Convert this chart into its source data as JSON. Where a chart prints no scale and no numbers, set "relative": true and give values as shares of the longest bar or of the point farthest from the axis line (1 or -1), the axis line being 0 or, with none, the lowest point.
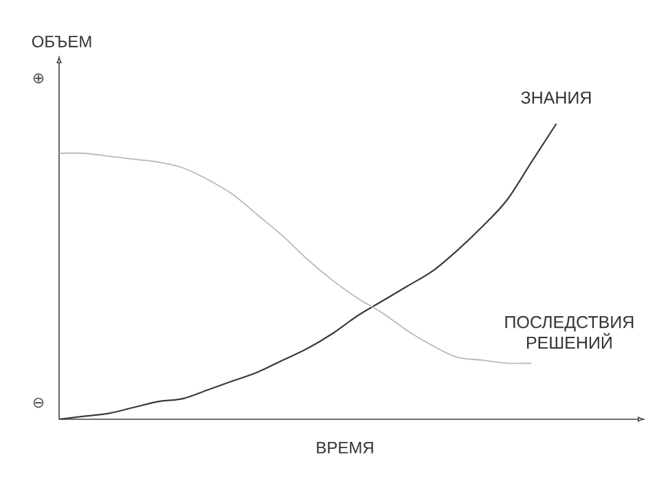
{
  "chart_data": {
    "type": "line",
    "relative": true,
    "xlabel": "ВРЕМЯ",
    "ylabel": "ОБЪЕМ",
    "categories": [
      null,
      null,
      null,
      null,
      null,
      null,
      null,
      null,
      null,
      null,
      null,
      null,
      null,
      null,
      null,
      null,
      null,
      null,
      null,
      null,
      null,
      null,
      null,
      null
    ],
    "series": [
      {
        "name": "ЗНАНИЯ",
        "color": "#3a3a3a",
        "values": [
          0,
          0.01,
          0.02,
          0.04,
          0.06,
          0.07,
          0.1,
          0.13,
          0.16,
          0.2,
          0.24,
          0.29,
          0.35,
          0.4,
          0.45,
          0.5,
          0.57,
          0.65,
          0.74,
          0.87,
          1.0,
          null,
          null,
          null
        ]
      },
      {
        "name": "ПОСЛЕДСТВИЯ РЕШЕНИЙ",
        "color": "#b8b8b8",
        "values": [
          0.9,
          0.9,
          0.89,
          0.88,
          0.87,
          0.85,
          0.81,
          0.76,
          0.69,
          0.62,
          0.54,
          0.47,
          0.41,
          0.36,
          0.3,
          0.25,
          0.21,
          0.2,
          0.19,
          0.19,
          null,
          null,
          null,
          null
        ]
      }
    ],
    "annotations": [
      "⊕",
      "⊖"
    ]
  }
}
